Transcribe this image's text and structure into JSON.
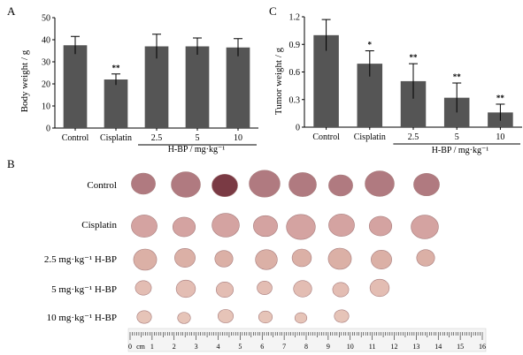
{
  "panel_labels": {
    "a": "A",
    "b": "B",
    "c": "C"
  },
  "chart_data": [
    {
      "type": "bar",
      "panel": "A",
      "categories": [
        "Control",
        "Cisplatin",
        "2.5",
        "5",
        "10"
      ],
      "values": [
        37.5,
        22,
        37,
        37,
        36.5
      ],
      "errors": [
        4,
        2.5,
        5.5,
        3.8,
        4
      ],
      "significance": [
        "",
        "**",
        "",
        "",
        ""
      ],
      "ylabel": "Body weight / g",
      "xgroup_label": "H-BP / mg·kg⁻¹",
      "ylim": [
        0,
        50
      ],
      "yticks": [
        0,
        10,
        20,
        30,
        40,
        50
      ],
      "bar_color": "#555555",
      "grid": false
    },
    {
      "type": "bar",
      "panel": "C",
      "categories": [
        "Control",
        "Cisplatin",
        "2.5",
        "5",
        "10"
      ],
      "values": [
        1.0,
        0.69,
        0.5,
        0.32,
        0.16
      ],
      "errors": [
        0.17,
        0.14,
        0.19,
        0.16,
        0.09
      ],
      "significance": [
        "",
        "*",
        "**",
        "**",
        "**"
      ],
      "ylabel": "Tumor weight / g",
      "xgroup_label": "H-BP / mg·kg⁻¹",
      "ylim": [
        0,
        1.2
      ],
      "yticks": [
        0,
        0.3,
        0.6,
        0.9,
        1.2
      ],
      "bar_color": "#555555",
      "grid": false
    }
  ],
  "photo": {
    "row_labels": [
      "Control",
      "Cisplatin",
      "2.5 mg·kg⁻¹ H-BP",
      "5 mg·kg⁻¹ H-BP",
      "10 mg·kg⁻¹ H-BP"
    ],
    "tumor_counts": [
      8,
      8,
      8,
      7,
      6
    ],
    "tumor_colors": [
      "#b07a80",
      "#d4a3a1",
      "#dbb0a6",
      "#e3bdb3",
      "#e6c4b8"
    ],
    "ruler_unit": "cm",
    "ruler_numbers": [
      "0",
      "1",
      "2",
      "3",
      "4",
      "5",
      "6",
      "7",
      "8",
      "9",
      "10",
      "11",
      "12",
      "13",
      "14",
      "15",
      "16"
    ]
  }
}
